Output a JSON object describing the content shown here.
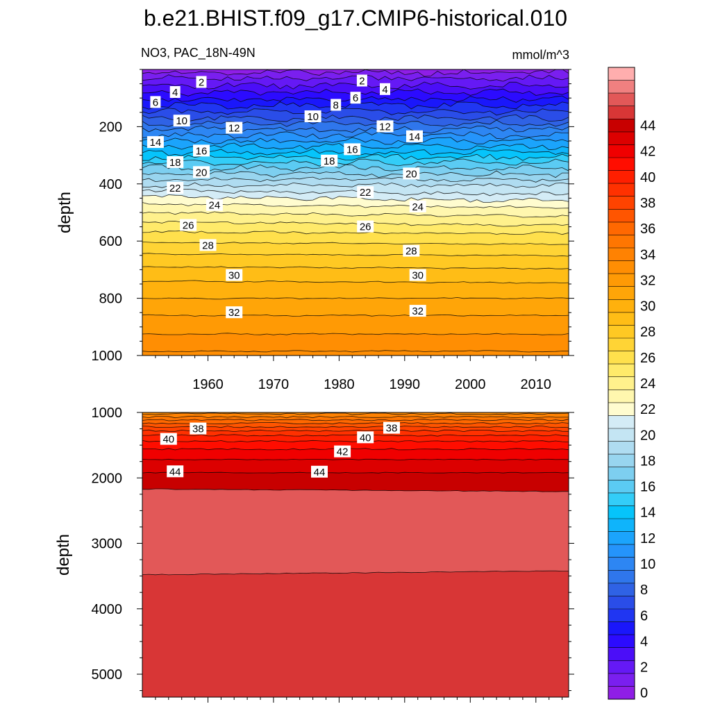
{
  "title": "b.e21.BHIST.f09_g17.CMIP6-historical.010",
  "subtitle_left": "NO3, PAC_18N-49N",
  "subtitle_right": "mmol/m^3",
  "chart_data": [
    {
      "type": "heatmap",
      "panel": "upper",
      "variable": "NO3",
      "region": "PAC_18N-49N",
      "units": "mmol/m^3",
      "ylabel": "depth",
      "y_reversed": true,
      "xlim": [
        1950,
        2015
      ],
      "ylim": [
        0,
        1000
      ],
      "x_ticks": [
        1960,
        1970,
        1980,
        1990,
        2000,
        2010
      ],
      "y_ticks": [
        200,
        400,
        600,
        800,
        1000
      ],
      "contour_interval": 1,
      "contour_label_values": [
        2,
        4,
        6,
        8,
        10,
        12,
        14,
        16,
        18,
        20,
        22,
        24,
        26,
        28,
        30,
        32
      ],
      "isoline_depths_at_start": {
        "levels": [
          1,
          2,
          3,
          4,
          5,
          6,
          7,
          8,
          9,
          10,
          11,
          12,
          13,
          14,
          15,
          16,
          17,
          18,
          19,
          20,
          21,
          22,
          23,
          24,
          25,
          26,
          27,
          28,
          29,
          30,
          31,
          32,
          33,
          34
        ],
        "depths": [
          12,
          30,
          56,
          80,
          104,
          126,
          148,
          170,
          190,
          210,
          230,
          250,
          270,
          290,
          308,
          326,
          345,
          365,
          385,
          405,
          423,
          445,
          470,
          500,
          532,
          568,
          605,
          645,
          690,
          740,
          800,
          860,
          925,
          985
        ]
      },
      "contour_labels": [
        {
          "value": 2,
          "x": 1959,
          "y": 45
        },
        {
          "value": 4,
          "x": 1955,
          "y": 80
        },
        {
          "value": 6,
          "x": 1952,
          "y": 115
        },
        {
          "value": 10,
          "x": 1956,
          "y": 180
        },
        {
          "value": 12,
          "x": 1964,
          "y": 205
        },
        {
          "value": 14,
          "x": 1952,
          "y": 255
        },
        {
          "value": 16,
          "x": 1959,
          "y": 285
        },
        {
          "value": 18,
          "x": 1955,
          "y": 325
        },
        {
          "value": 20,
          "x": 1959,
          "y": 360
        },
        {
          "value": 22,
          "x": 1955,
          "y": 415
        },
        {
          "value": 24,
          "x": 1961,
          "y": 475
        },
        {
          "value": 26,
          "x": 1957,
          "y": 545
        },
        {
          "value": 28,
          "x": 1960,
          "y": 615
        },
        {
          "value": 30,
          "x": 1964,
          "y": 720
        },
        {
          "value": 32,
          "x": 1964,
          "y": 850
        },
        {
          "value": 2,
          "x": 1983.5,
          "y": 40
        },
        {
          "value": 4,
          "x": 1987,
          "y": 70
        },
        {
          "value": 6,
          "x": 1982.5,
          "y": 100
        },
        {
          "value": 8,
          "x": 1979.5,
          "y": 125
        },
        {
          "value": 10,
          "x": 1976,
          "y": 165
        },
        {
          "value": 12,
          "x": 1987,
          "y": 200
        },
        {
          "value": 14,
          "x": 1991.5,
          "y": 235
        },
        {
          "value": 16,
          "x": 1982,
          "y": 280
        },
        {
          "value": 18,
          "x": 1978.5,
          "y": 320
        },
        {
          "value": 20,
          "x": 1991,
          "y": 365
        },
        {
          "value": 22,
          "x": 1984,
          "y": 430
        },
        {
          "value": 24,
          "x": 1992,
          "y": 480
        },
        {
          "value": 26,
          "x": 1984,
          "y": 550
        },
        {
          "value": 28,
          "x": 1991,
          "y": 635
        },
        {
          "value": 30,
          "x": 1992,
          "y": 720
        },
        {
          "value": 32,
          "x": 1992,
          "y": 845
        }
      ]
    },
    {
      "type": "heatmap",
      "panel": "lower",
      "variable": "NO3",
      "ylabel": "depth",
      "y_reversed": true,
      "xlim": [
        1950,
        2015
      ],
      "ylim": [
        1000,
        5350
      ],
      "y_ticks": [
        1000,
        2000,
        3000,
        4000,
        5000
      ],
      "contour_interval": 1,
      "contour_label_values": [
        38,
        40,
        42,
        44
      ],
      "isoline_depths_at_start": {
        "levels": [
          34,
          35,
          36,
          37,
          38,
          39,
          40,
          41,
          42,
          43,
          44,
          45,
          46
        ],
        "depths": [
          1020,
          1070,
          1115,
          1165,
          1220,
          1280,
          1350,
          1440,
          1560,
          1720,
          1920,
          2170,
          3480
        ]
      },
      "isoline_depths_at_end": {
        "levels": [
          45,
          46
        ],
        "depths": [
          2210,
          3420
        ]
      },
      "deep_fill_value": 45.5,
      "contour_labels": [
        {
          "value": 38,
          "x": 1958.5,
          "y": 1250
        },
        {
          "value": 40,
          "x": 1954,
          "y": 1410
        },
        {
          "value": 44,
          "x": 1955,
          "y": 1905
        },
        {
          "value": 38,
          "x": 1988,
          "y": 1240
        },
        {
          "value": 40,
          "x": 1984,
          "y": 1385
        },
        {
          "value": 42,
          "x": 1980.5,
          "y": 1600
        },
        {
          "value": 44,
          "x": 1977,
          "y": 1910
        }
      ]
    }
  ],
  "colorbar": {
    "labels": [
      "0",
      "2",
      "4",
      "6",
      "8",
      "10",
      "12",
      "14",
      "16",
      "18",
      "20",
      "22",
      "24",
      "26",
      "28",
      "30",
      "32",
      "34",
      "36",
      "38",
      "40",
      "42",
      "44"
    ],
    "colors": [
      "#8f1ee6",
      "#7a1fef",
      "#6519f5",
      "#4b0ef8",
      "#2c0bff",
      "#1a17fb",
      "#2036f2",
      "#2a4de8",
      "#2f62e5",
      "#2f76ec",
      "#2d86f3",
      "#2594fb",
      "#1ba4fc",
      "#0fb4fb",
      "#06c4fb",
      "#33cdf8",
      "#5bcbf3",
      "#7dcff0",
      "#98d5ef",
      "#afdcf1",
      "#c4e5f3",
      "#d4ecf6",
      "#fffccf",
      "#fff7ae",
      "#fff18c",
      "#ffea6a",
      "#ffe04c",
      "#ffd435",
      "#ffc923",
      "#ffbd16",
      "#ffb10d",
      "#ffa508",
      "#ff9a05",
      "#ff8e03",
      "#ff8202",
      "#ff7601",
      "#ff6801",
      "#ff5500",
      "#ff4300",
      "#ff3100",
      "#ff1f00",
      "#ff0d00",
      "#f00000",
      "#dc0000",
      "#c80000",
      "#d83636",
      "#e25858",
      "#f08080",
      "#ffaeae"
    ],
    "tick_count": 23
  }
}
